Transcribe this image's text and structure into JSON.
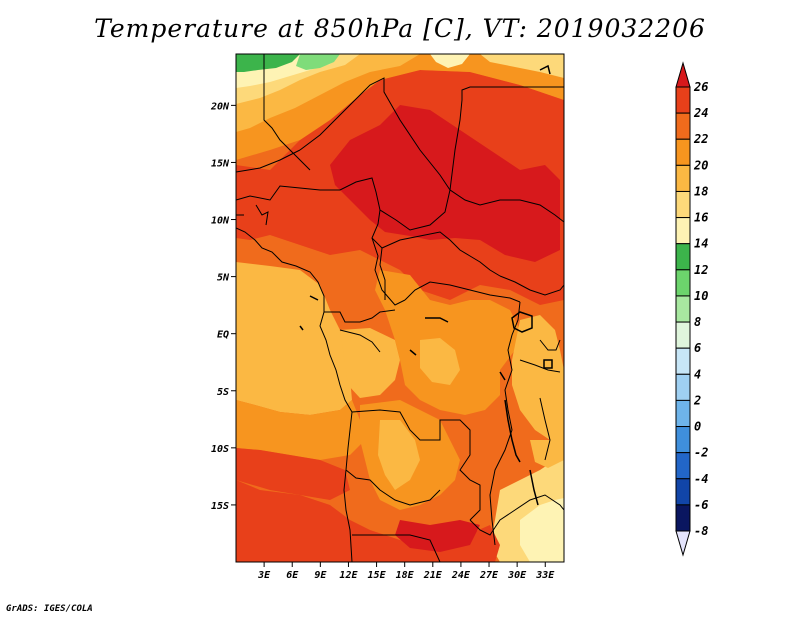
{
  "title": "Temperature at 850hPa [C], VT: 2019032206",
  "credit": "GrADS: IGES/COLA",
  "map": {
    "lon_range": [
      0,
      35
    ],
    "lat_range": [
      -20,
      24.5
    ],
    "lon_ticks": [
      {
        "value": 3,
        "label": "3E"
      },
      {
        "value": 6,
        "label": "6E"
      },
      {
        "value": 9,
        "label": "9E"
      },
      {
        "value": 12,
        "label": "12E"
      },
      {
        "value": 15,
        "label": "15E"
      },
      {
        "value": 18,
        "label": "18E"
      },
      {
        "value": 21,
        "label": "21E"
      },
      {
        "value": 24,
        "label": "24E"
      },
      {
        "value": 27,
        "label": "27E"
      },
      {
        "value": 30,
        "label": "30E"
      },
      {
        "value": 33,
        "label": "33E"
      }
    ],
    "lat_ticks": [
      {
        "value": 20,
        "label": "20N"
      },
      {
        "value": 15,
        "label": "15N"
      },
      {
        "value": 10,
        "label": "10N"
      },
      {
        "value": 5,
        "label": "5N"
      },
      {
        "value": 0,
        "label": "EQ"
      },
      {
        "value": -5,
        "label": "5S"
      },
      {
        "value": -10,
        "label": "10S"
      },
      {
        "value": -15,
        "label": "15S"
      }
    ]
  },
  "colorbar": {
    "levels": [
      {
        "label": "26",
        "color": "#d7191c"
      },
      {
        "label": "24",
        "color": "#e8401a"
      },
      {
        "label": "22",
        "color": "#f06b1c"
      },
      {
        "label": "20",
        "color": "#f7951f"
      },
      {
        "label": "18",
        "color": "#fbb843"
      },
      {
        "label": "16",
        "color": "#fdd97a"
      },
      {
        "label": "14",
        "color": "#fef3b4"
      },
      {
        "label": "12",
        "color": "#3cb44b"
      },
      {
        "label": "10",
        "color": "#6cd46c"
      },
      {
        "label": "8",
        "color": "#a8e8a0"
      },
      {
        "label": "6",
        "color": "#dff5dc"
      },
      {
        "label": "4",
        "color": "#c7e6f7"
      },
      {
        "label": "2",
        "color": "#9fd0f2"
      },
      {
        "label": "0",
        "color": "#6eb4ea"
      },
      {
        "label": "-2",
        "color": "#3f8fdc"
      },
      {
        "label": "-4",
        "color": "#2266c8"
      },
      {
        "label": "-6",
        "color": "#1145a8"
      },
      {
        "label": "-8",
        "color": "#0a2580"
      }
    ],
    "over_color": "#d7191c",
    "under_color": "#e4e4fc",
    "top_segment_color": "#0a1660"
  },
  "colors": {
    "c26": "#d7191c",
    "c24": "#e8401a",
    "c22": "#f06b1c",
    "c20": "#f7951f",
    "c18": "#fbb843",
    "c16": "#fdd97a",
    "c14": "#fef3b4",
    "green": "#3cb44b",
    "lightgreen": "#7fdc7a"
  }
}
